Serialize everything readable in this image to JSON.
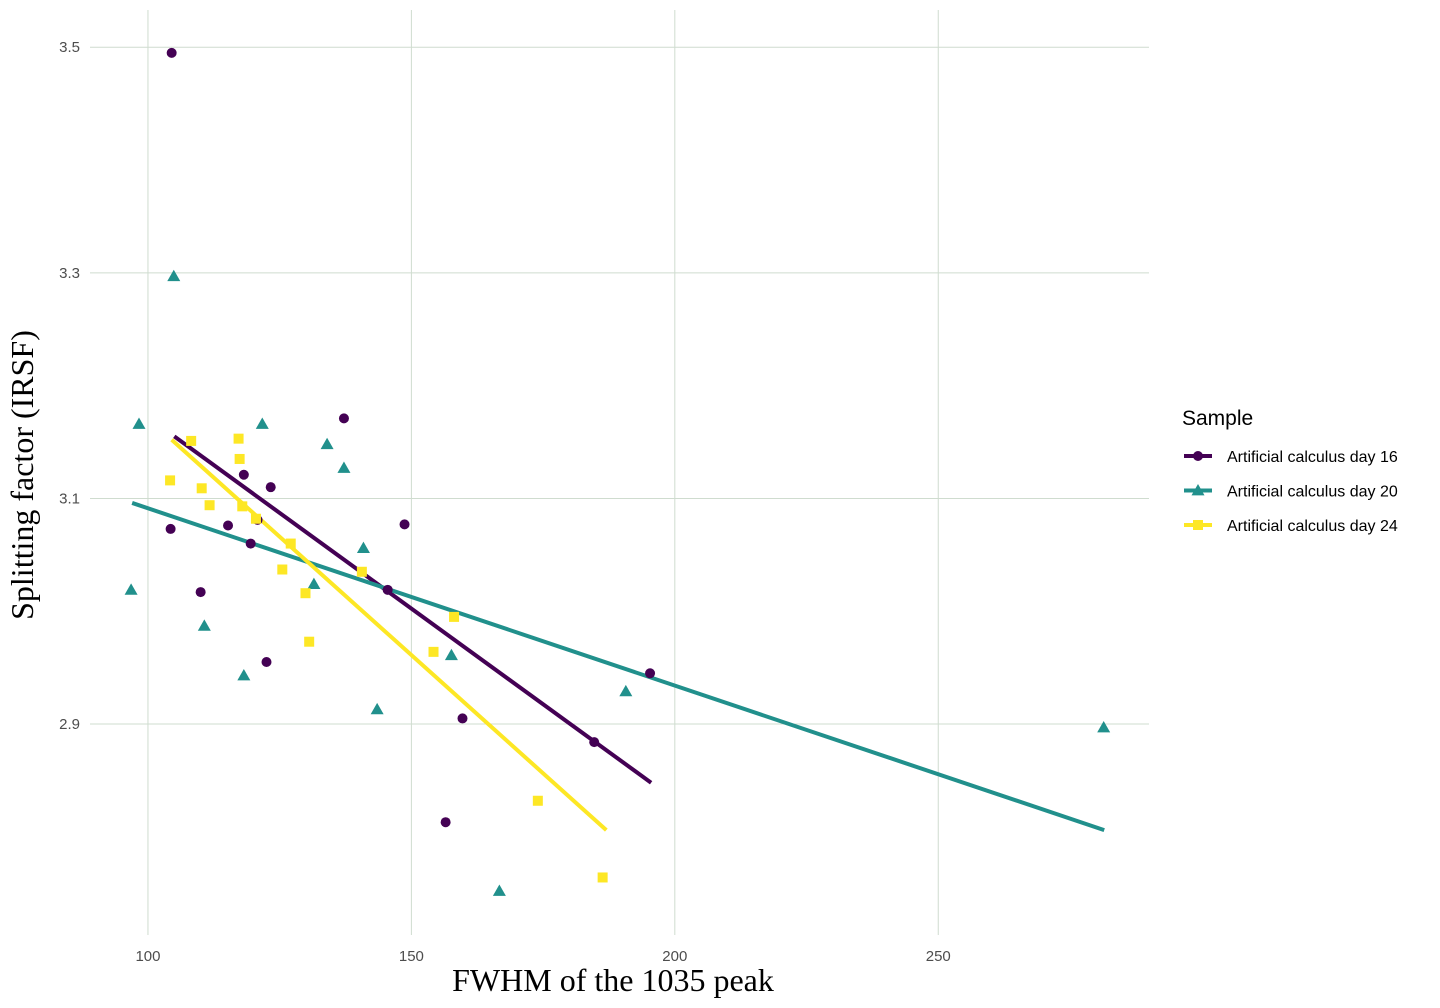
{
  "chart_data": {
    "type": "scatter",
    "title": "",
    "xlabel": "FWHM of the 1035 peak",
    "ylabel": "Splitting factor (IRSF)",
    "xlim": [
      89,
      290
    ],
    "ylim": [
      2.713,
      3.533
    ],
    "x_ticks": [
      100,
      150,
      200,
      250
    ],
    "y_ticks": [
      2.9,
      3.1,
      3.3,
      3.5
    ],
    "x_tick_labels": [
      "100",
      "150",
      "200",
      "250"
    ],
    "y_tick_labels": [
      "2.9",
      "3.1",
      "3.3",
      "3.5"
    ],
    "grid": true,
    "legend": {
      "title": "Sample",
      "position": "right"
    },
    "series": [
      {
        "name": "Artificial calculus day 16",
        "color": "#440154",
        "marker": "circle",
        "points": [
          [
            104.5,
            3.495
          ],
          [
            104.3,
            3.073
          ],
          [
            110.0,
            3.017
          ],
          [
            115.2,
            3.076
          ],
          [
            118.2,
            3.121
          ],
          [
            119.5,
            3.06
          ],
          [
            120.8,
            3.081
          ],
          [
            123.3,
            3.11
          ],
          [
            122.5,
            2.955
          ],
          [
            137.2,
            3.171
          ],
          [
            145.5,
            3.019
          ],
          [
            148.7,
            3.077
          ],
          [
            159.7,
            2.905
          ],
          [
            156.5,
            2.813
          ],
          [
            184.7,
            2.884
          ],
          [
            195.3,
            2.945
          ]
        ],
        "fit": [
          [
            105.0,
            3.155
          ],
          [
            195.5,
            2.848
          ]
        ]
      },
      {
        "name": "Artificial calculus day 20",
        "color": "#21908c",
        "marker": "triangle",
        "points": [
          [
            96.8,
            3.019
          ],
          [
            98.3,
            3.166
          ],
          [
            104.9,
            3.297
          ],
          [
            110.7,
            2.987
          ],
          [
            118.2,
            2.943
          ],
          [
            121.7,
            3.166
          ],
          [
            131.5,
            3.024
          ],
          [
            134.0,
            3.148
          ],
          [
            137.2,
            3.127
          ],
          [
            140.9,
            3.056
          ],
          [
            143.5,
            2.913
          ],
          [
            157.6,
            2.961
          ],
          [
            166.7,
            2.752
          ],
          [
            190.7,
            2.929
          ],
          [
            281.4,
            2.897
          ]
        ],
        "fit": [
          [
            97.0,
            3.096
          ],
          [
            281.5,
            2.806
          ]
        ]
      },
      {
        "name": "Artificial calculus day 24",
        "color": "#fde725",
        "marker": "square",
        "points": [
          [
            104.2,
            3.116
          ],
          [
            108.2,
            3.151
          ],
          [
            110.2,
            3.109
          ],
          [
            111.7,
            3.094
          ],
          [
            117.2,
            3.153
          ],
          [
            117.4,
            3.135
          ],
          [
            117.9,
            3.093
          ],
          [
            120.5,
            3.082
          ],
          [
            125.5,
            3.037
          ],
          [
            127.1,
            3.06
          ],
          [
            129.9,
            3.016
          ],
          [
            130.6,
            2.973
          ],
          [
            140.6,
            3.035
          ],
          [
            154.2,
            2.964
          ],
          [
            158.1,
            2.995
          ],
          [
            174.0,
            2.832
          ],
          [
            186.3,
            2.764
          ]
        ],
        "fit": [
          [
            104.5,
            3.152
          ],
          [
            187.0,
            2.806
          ]
        ]
      }
    ]
  }
}
